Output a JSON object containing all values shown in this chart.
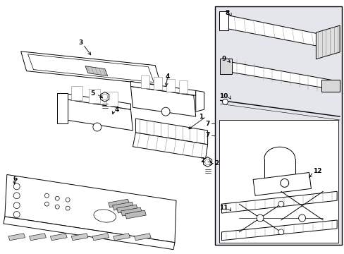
{
  "bg_color": "#ffffff",
  "fig_width": 4.89,
  "fig_height": 3.6,
  "dpi": 100,
  "lc": "#000000",
  "box_fill": "#e8e8ec",
  "inner_box_fill": "#f0f0f4",
  "lw_main": 0.7,
  "lw_thin": 0.4,
  "label_fs": 6.5,
  "arrow_fs": 5
}
